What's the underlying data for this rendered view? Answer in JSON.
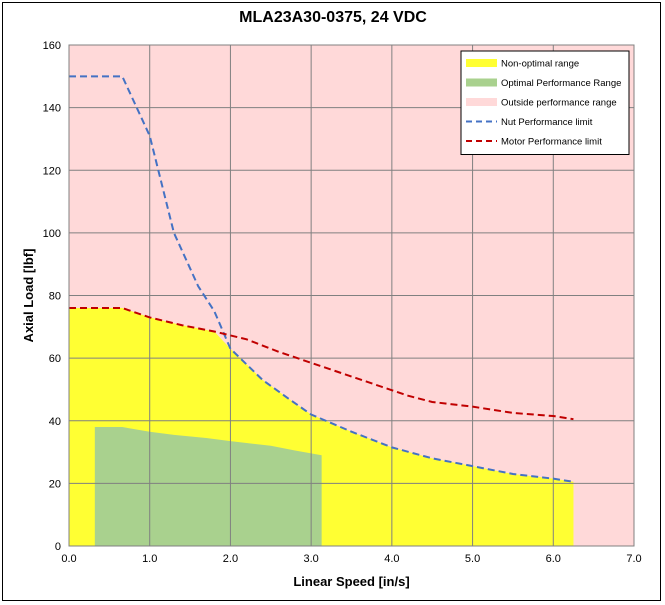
{
  "chart_data": {
    "type": "area",
    "title": "MLA23A30-0375, 24 VDC",
    "xlabel": "Linear Speed [in/s]",
    "ylabel": "Axial Load [lbf]",
    "xlim": [
      0,
      7
    ],
    "ylim": [
      0,
      160
    ],
    "xticks": [
      "0.0",
      "1.0",
      "2.0",
      "3.0",
      "4.0",
      "5.0",
      "6.0",
      "7.0"
    ],
    "yticks": [
      "0",
      "20",
      "40",
      "60",
      "80",
      "100",
      "120",
      "140",
      "160"
    ],
    "grid": true,
    "legend_position": "top-right",
    "colors": {
      "background": "#ffd9d9",
      "non_optimal": "#ffff33",
      "optimal": "#a9d18e",
      "nut_limit": "#4472c4",
      "motor_limit": "#c00000",
      "grid": "#808080"
    },
    "series": [
      {
        "name": "Non-optimal range",
        "kind": "area",
        "points": [
          [
            0,
            76
          ],
          [
            0.66,
            76
          ],
          [
            1.0,
            73
          ],
          [
            1.4,
            70.5
          ],
          [
            1.8,
            68.5
          ],
          [
            2.0,
            63
          ],
          [
            2.4,
            53
          ],
          [
            2.75,
            46.5
          ],
          [
            3.0,
            42
          ],
          [
            3.5,
            36.5
          ],
          [
            4.0,
            31.5
          ],
          [
            4.5,
            28
          ],
          [
            5.0,
            25.5
          ],
          [
            5.5,
            23
          ],
          [
            6.0,
            21.5
          ],
          [
            6.25,
            20.5
          ]
        ]
      },
      {
        "name": "Optimal Performance Range",
        "kind": "area",
        "points": [
          [
            0.32,
            38
          ],
          [
            0.66,
            38
          ],
          [
            1.0,
            36.5
          ],
          [
            1.3,
            35.5
          ],
          [
            1.7,
            34.5
          ],
          [
            2.0,
            33.5
          ],
          [
            2.5,
            32
          ],
          [
            2.8,
            30.5
          ],
          [
            3.13,
            29
          ]
        ]
      },
      {
        "name": "Outside performance range",
        "kind": "background"
      },
      {
        "name": "Nut Performance limit",
        "kind": "dashed-line",
        "points": [
          [
            0,
            150
          ],
          [
            0.66,
            150
          ],
          [
            1.0,
            131
          ],
          [
            1.3,
            100
          ],
          [
            1.6,
            83
          ],
          [
            1.8,
            75
          ],
          [
            2.0,
            63
          ],
          [
            2.4,
            53
          ],
          [
            2.75,
            46.5
          ],
          [
            3.0,
            42
          ],
          [
            3.5,
            36.5
          ],
          [
            4.0,
            31.5
          ],
          [
            4.5,
            28
          ],
          [
            5.0,
            25.5
          ],
          [
            5.5,
            23
          ],
          [
            6.0,
            21.5
          ],
          [
            6.25,
            20.5
          ]
        ]
      },
      {
        "name": "Motor Performance limit",
        "kind": "dashed-line",
        "points": [
          [
            0,
            76
          ],
          [
            0.66,
            76
          ],
          [
            1.0,
            73
          ],
          [
            1.4,
            70.5
          ],
          [
            1.8,
            68.5
          ],
          [
            2.2,
            66
          ],
          [
            2.6,
            62
          ],
          [
            3.0,
            58.5
          ],
          [
            3.4,
            55
          ],
          [
            3.8,
            51.5
          ],
          [
            4.2,
            48
          ],
          [
            4.5,
            46
          ],
          [
            5.0,
            44.5
          ],
          [
            5.5,
            42.5
          ],
          [
            6.0,
            41.5
          ],
          [
            6.25,
            40.5
          ]
        ]
      }
    ]
  }
}
